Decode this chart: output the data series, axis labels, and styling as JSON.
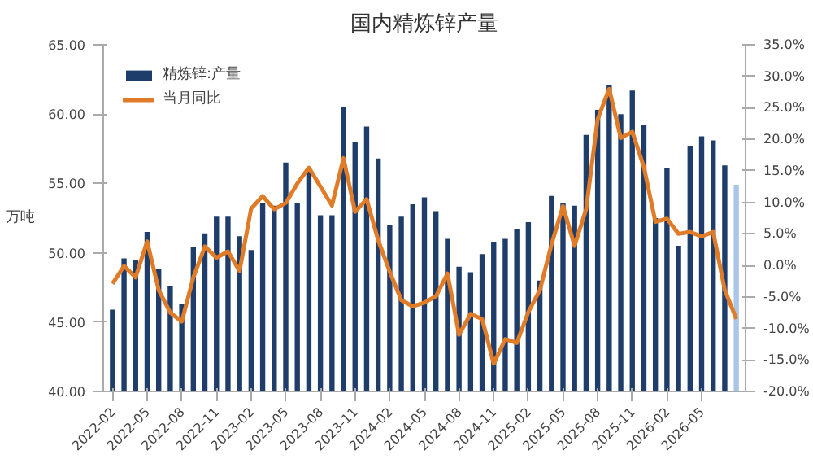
{
  "chart_data": {
    "type": "bar",
    "title": "国内精炼锌产量",
    "ylabel": "万吨",
    "categories": [
      "2022-02",
      null,
      null,
      "2022-05",
      null,
      null,
      "2022-08",
      null,
      null,
      "2022-11",
      null,
      null,
      "2023-02",
      null,
      null,
      "2023-05",
      null,
      null,
      "2023-08",
      null,
      null,
      "2023-11",
      null,
      null,
      "2024-02",
      null,
      null,
      "2024-05",
      null,
      null,
      "2024-08",
      null,
      null,
      "2024-11",
      null,
      null,
      "2025-02",
      null,
      null,
      "2025-05",
      null,
      null,
      "2025-08",
      null,
      null,
      "2025-11",
      null,
      null,
      "2026-02",
      null,
      null,
      "2026-05",
      null,
      null,
      null
    ],
    "series": [
      {
        "name": "精炼锌:产量",
        "color": "#1f3d6b",
        "colors": [
          "#1f3d6b",
          "#1f3d6b",
          "#1f3d6b",
          "#1f3d6b",
          "#1f3d6b",
          "#1f3d6b",
          "#1f3d6b",
          "#1f3d6b",
          "#1f3d6b",
          "#1f3d6b",
          "#1f3d6b",
          "#1f3d6b",
          "#1f3d6b",
          "#1f3d6b",
          "#1f3d6b",
          "#1f3d6b",
          "#1f3d6b",
          "#1f3d6b",
          "#1f3d6b",
          "#1f3d6b",
          "#1f3d6b",
          "#1f3d6b",
          "#1f3d6b",
          "#1f3d6b",
          "#1f3d6b",
          "#1f3d6b",
          "#1f3d6b",
          "#1f3d6b",
          "#1f3d6b",
          "#1f3d6b",
          "#1f3d6b",
          "#1f3d6b",
          "#1f3d6b",
          "#1f3d6b",
          "#1f3d6b",
          "#1f3d6b",
          "#1f3d6b",
          "#1f3d6b",
          "#1f3d6b",
          "#1f3d6b",
          "#1f3d6b",
          "#1f3d6b",
          "#1f3d6b",
          "#1f3d6b",
          "#1f3d6b",
          "#1f3d6b",
          "#1f3d6b",
          "#1f3d6b",
          "#1f3d6b",
          "#1f3d6b",
          "#1f3d6b",
          "#1f3d6b",
          "#1f3d6b",
          "#1f3d6b",
          "#a9c6e8"
        ],
        "values": [
          45.9,
          49.6,
          49.5,
          51.5,
          48.8,
          47.6,
          46.3,
          50.4,
          51.4,
          52.6,
          52.6,
          51.2,
          50.2,
          53.6,
          53.4,
          56.5,
          53.6,
          56.0,
          52.7,
          52.7,
          60.5,
          58.0,
          59.1,
          56.8,
          52.0,
          52.6,
          53.5,
          54.0,
          53.0,
          51.0,
          49.0,
          48.6,
          49.9,
          50.8,
          51.0,
          51.7,
          52.2,
          48.0,
          54.1,
          53.6,
          53.4,
          58.5,
          60.3,
          62.1,
          60.0,
          61.7,
          59.2,
          52.5,
          56.1,
          50.5,
          57.7,
          58.4,
          58.1,
          56.3,
          54.9
        ]
      },
      {
        "name": "当月同比",
        "type": "line",
        "axis": "y2",
        "color": "#e07b28",
        "values": [
          -2.9,
          -0.1,
          -1.9,
          3.8,
          -3.9,
          -7.5,
          -8.9,
          -1.9,
          3.0,
          1.2,
          2.2,
          -0.9,
          9.0,
          11.0,
          8.9,
          9.9,
          13.0,
          15.5,
          12.5,
          9.5,
          17.0,
          8.5,
          10.5,
          4.0,
          -1.0,
          -5.5,
          -6.5,
          -5.9,
          -4.9,
          -1.3,
          -11.0,
          -7.7,
          -8.5,
          -15.6,
          -11.7,
          -12.3,
          -7.4,
          -3.9,
          3.3,
          9.4,
          3.1,
          8.9,
          23.2,
          28.0,
          20.2,
          21.2,
          15.6,
          6.9,
          7.4,
          5.0,
          5.3,
          4.6,
          5.3,
          -3.9,
          -8.5
        ]
      }
    ],
    "ylim": [
      40,
      65
    ],
    "yticks": [
      {
        "value": 40,
        "label": "40.00"
      },
      {
        "value": 45,
        "label": "45.00"
      },
      {
        "value": 50,
        "label": "50.00"
      },
      {
        "value": 55,
        "label": "55.00"
      },
      {
        "value": 60,
        "label": "60.00"
      },
      {
        "value": 65,
        "label": "65.00"
      }
    ],
    "y2lim": [
      -20,
      35
    ],
    "y2ticks": [
      {
        "value": -20,
        "label": "-20.0%"
      },
      {
        "value": -15,
        "label": "-15.0%"
      },
      {
        "value": -10,
        "label": "-10.0%"
      },
      {
        "value": -5,
        "label": "-5.0%"
      },
      {
        "value": 0,
        "label": "0.0%"
      },
      {
        "value": 5,
        "label": "5.0%"
      },
      {
        "value": 10,
        "label": "10.0%"
      },
      {
        "value": 15,
        "label": "15.0%"
      },
      {
        "value": 20,
        "label": "20.0%"
      },
      {
        "value": 25,
        "label": "25.0%"
      },
      {
        "value": 30,
        "label": "30.0%"
      },
      {
        "value": 35,
        "label": "35.0%"
      }
    ],
    "grid": false,
    "legend": "top left"
  }
}
